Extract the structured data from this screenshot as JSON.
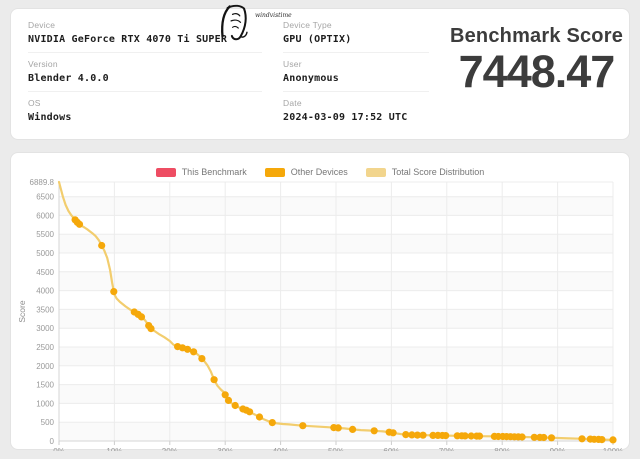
{
  "logo": {
    "icon": "wind-calligraphy",
    "caption": "windvistime"
  },
  "info": {
    "device": {
      "label": "Device",
      "value": "NVIDIA GeForce RTX 4070 Ti SUPER"
    },
    "version": {
      "label": "Version",
      "value": "Blender 4.0.0"
    },
    "os": {
      "label": "OS",
      "value": "Windows"
    },
    "device_type": {
      "label": "Device Type",
      "value": "GPU (OPTIX)"
    },
    "user": {
      "label": "User",
      "value": "Anonymous"
    },
    "date": {
      "label": "Date",
      "value": "2024-03-09 17:52 UTC"
    }
  },
  "score": {
    "label": "Benchmark Score",
    "value": "7448.47"
  },
  "chart_data": {
    "type": "line",
    "title": "",
    "xlabel": "",
    "ylabel": "Score",
    "xlim": [
      0,
      100
    ],
    "ylim": [
      0,
      6889.8
    ],
    "x_tick_labels": [
      "0%",
      "10%",
      "20%",
      "30%",
      "40%",
      "50%",
      "60%",
      "70%",
      "80%",
      "90%",
      "100%"
    ],
    "y_ticks": [
      0,
      500,
      1000,
      1500,
      2000,
      2500,
      3000,
      3500,
      4000,
      4500,
      5000,
      5500,
      6000,
      6500,
      6889.8
    ],
    "grid": true,
    "legend_position": "top-center",
    "this_benchmark_score": 7448.47,
    "legend": [
      {
        "label": "This Benchmark",
        "color": "#ee4d63"
      },
      {
        "label": "Other Devices",
        "color": "#f5a80a"
      },
      {
        "label": "Total Score Distribution",
        "color": "#f2d58d"
      }
    ],
    "series": [
      {
        "name": "Total Score Distribution",
        "type": "line",
        "color": "#f2cd6e",
        "points": [
          [
            0,
            6889.8
          ],
          [
            0.3,
            6720
          ],
          [
            0.7,
            6500
          ],
          [
            1.2,
            6280
          ],
          [
            1.7,
            6120
          ],
          [
            2.2,
            6010
          ],
          [
            2.8,
            5900
          ],
          [
            3.4,
            5800
          ],
          [
            4,
            5730
          ],
          [
            4.6,
            5680
          ],
          [
            5.2,
            5620
          ],
          [
            6,
            5530
          ],
          [
            6.6,
            5450
          ],
          [
            7.2,
            5340
          ],
          [
            7.7,
            5200
          ],
          [
            8.2,
            5060
          ],
          [
            8.7,
            4870
          ],
          [
            9.2,
            4560
          ],
          [
            9.6,
            4200
          ],
          [
            10,
            3900
          ],
          [
            10.4,
            3790
          ],
          [
            11,
            3700
          ],
          [
            12,
            3580
          ],
          [
            13,
            3480
          ],
          [
            14,
            3400
          ],
          [
            15,
            3290
          ],
          [
            15.6,
            3200
          ],
          [
            16.1,
            3090
          ],
          [
            16.6,
            2990
          ],
          [
            17.2,
            2930
          ],
          [
            18,
            2850
          ],
          [
            19,
            2760
          ],
          [
            20,
            2660
          ],
          [
            20.6,
            2570
          ],
          [
            21.2,
            2520
          ],
          [
            22,
            2490
          ],
          [
            23,
            2450
          ],
          [
            24,
            2400
          ],
          [
            24.8,
            2330
          ],
          [
            25.5,
            2240
          ],
          [
            26.2,
            2130
          ],
          [
            26.8,
            2010
          ],
          [
            27.4,
            1850
          ],
          [
            28,
            1630
          ],
          [
            28.6,
            1470
          ],
          [
            29.2,
            1370
          ],
          [
            29.8,
            1290
          ],
          [
            30.4,
            1110
          ],
          [
            31,
            1020
          ],
          [
            31.6,
            960
          ],
          [
            32.2,
            915
          ],
          [
            33,
            860
          ],
          [
            34,
            810
          ],
          [
            35,
            730
          ],
          [
            36,
            655
          ],
          [
            37,
            575
          ],
          [
            38,
            515
          ],
          [
            38.6,
            485
          ],
          [
            39.4,
            468
          ],
          [
            40.4,
            452
          ],
          [
            41.5,
            442
          ],
          [
            43,
            420
          ],
          [
            44,
            406
          ],
          [
            45.5,
            394
          ],
          [
            47,
            380
          ],
          [
            48.5,
            366
          ],
          [
            50,
            352
          ],
          [
            51.5,
            336
          ],
          [
            53,
            308
          ],
          [
            54.5,
            290
          ],
          [
            56,
            280
          ],
          [
            57,
            270
          ],
          [
            58.5,
            255
          ],
          [
            60,
            225
          ],
          [
            61,
            200
          ],
          [
            62,
            178
          ],
          [
            63,
            165
          ],
          [
            64.5,
            158
          ],
          [
            66,
            154
          ],
          [
            68,
            149
          ],
          [
            70,
            144
          ],
          [
            72,
            139
          ],
          [
            74,
            134
          ],
          [
            76,
            129
          ],
          [
            78,
            124
          ],
          [
            80,
            119
          ],
          [
            82,
            113
          ],
          [
            84,
            106
          ],
          [
            86,
            98
          ],
          [
            88,
            90
          ],
          [
            90,
            80
          ],
          [
            92,
            70
          ],
          [
            94,
            60
          ],
          [
            96,
            50
          ],
          [
            98,
            38
          ],
          [
            100,
            28
          ]
        ]
      },
      {
        "name": "Other Devices",
        "type": "scatter-on-curve",
        "color": "#f5a80a",
        "percentiles": [
          2.9,
          3.3,
          3.7,
          7.7,
          9.9,
          13.6,
          14.3,
          14.9,
          16.2,
          16.6,
          21.4,
          22.3,
          23.2,
          24.3,
          25.8,
          28.0,
          30.0,
          30.6,
          31.8,
          33.2,
          33.8,
          34.4,
          36.2,
          38.5,
          44.0,
          49.6,
          50.4,
          53.0,
          56.9,
          59.6,
          60.3,
          62.6,
          63.7,
          64.7,
          65.7,
          67.5,
          68.4,
          69.2,
          69.8,
          71.9,
          72.7,
          73.3,
          74.4,
          75.4,
          75.9,
          78.6,
          79.3,
          80.1,
          80.8,
          81.5,
          82.2,
          82.9,
          83.6,
          85.8,
          86.8,
          87.5,
          88.9,
          94.4,
          95.9,
          96.6,
          97.4,
          98.0,
          100.0
        ]
      }
    ]
  }
}
